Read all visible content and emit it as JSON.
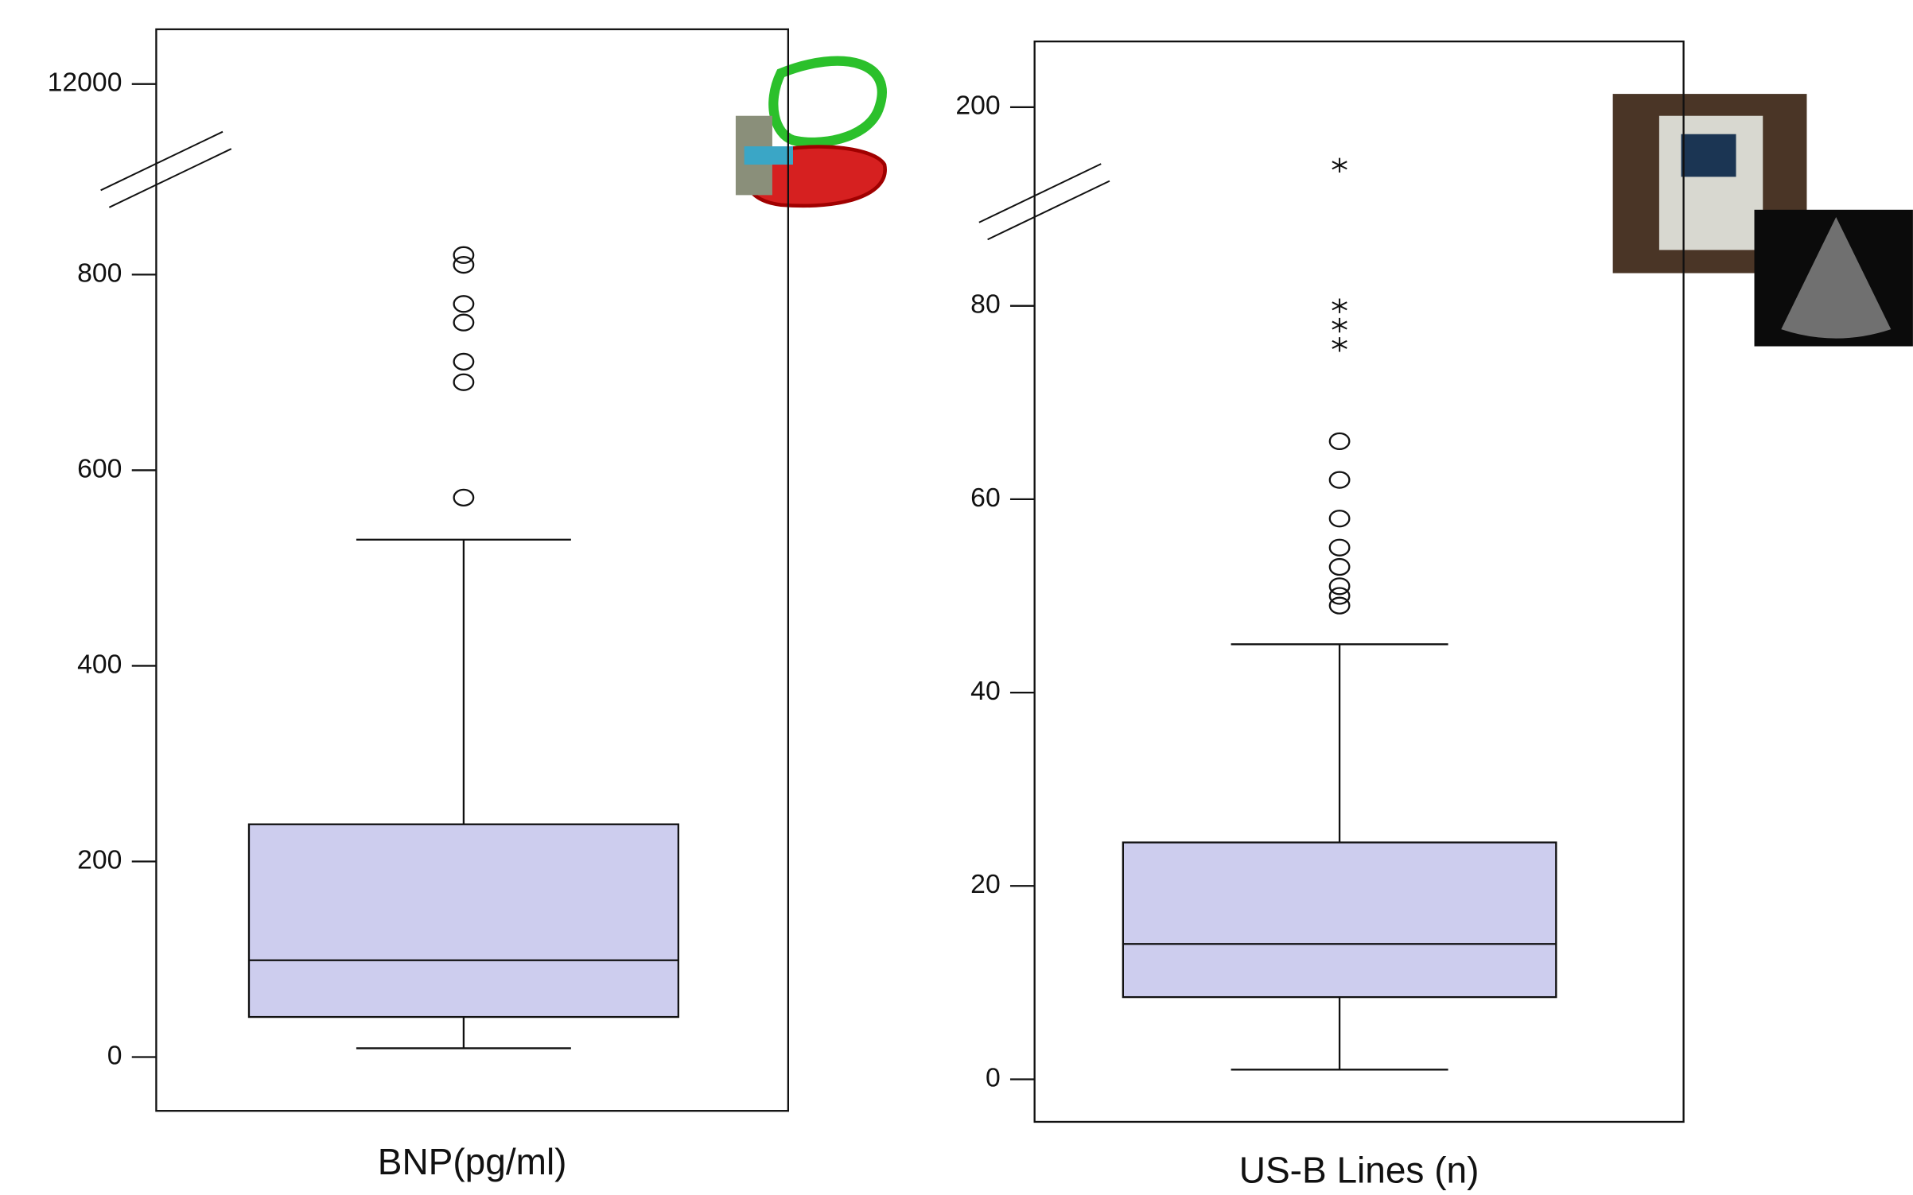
{
  "chart_data": [
    {
      "type": "box",
      "x_label": "BNP(pg/ml)",
      "color": "#cdcdee",
      "ylim": [
        -55,
        12056
      ],
      "y_break": [
        880,
        11940
      ],
      "yticks": [
        0,
        200,
        400,
        600,
        800,
        12000
      ],
      "box": {
        "whisker_low": 9,
        "q1": 41,
        "median": 99,
        "q3": 238,
        "whisker_high": 529
      },
      "outliers": [
        572,
        690,
        711,
        751,
        770,
        810,
        820
      ],
      "extremes": []
    },
    {
      "type": "box",
      "x_label": "US-B Lines (n)",
      "color": "#cdcdee",
      "ylim": [
        -4.4,
        206.8
      ],
      "y_break": [
        88,
        193
      ],
      "yticks": [
        0,
        20,
        40,
        60,
        80,
        200
      ],
      "box": {
        "whisker_low": 1,
        "q1": 8.5,
        "median": 14,
        "q3": 24.5,
        "whisker_high": 45
      },
      "outliers": [
        49,
        50,
        51,
        53,
        55,
        58,
        62,
        66
      ],
      "extremes": [
        76,
        78,
        80,
        194
      ]
    }
  ]
}
